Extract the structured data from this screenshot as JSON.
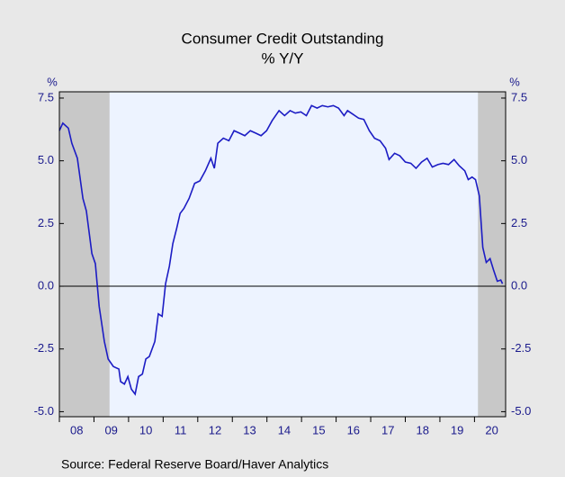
{
  "chart_data": {
    "type": "line",
    "title": "Consumer Credit Outstanding",
    "subtitle": "% Y/Y",
    "ylabel": "%",
    "y2label": "%",
    "source": "Source:  Federal Reserve Board/Haver Analytics",
    "xlim": [
      2008,
      2020.9
    ],
    "xticks": [
      {
        "value": 2008,
        "label": "08"
      },
      {
        "value": 2009,
        "label": "09"
      },
      {
        "value": 2010,
        "label": "10"
      },
      {
        "value": 2011,
        "label": "11"
      },
      {
        "value": 2012,
        "label": "12"
      },
      {
        "value": 2013,
        "label": "13"
      },
      {
        "value": 2014,
        "label": "14"
      },
      {
        "value": 2015,
        "label": "15"
      },
      {
        "value": 2016,
        "label": "16"
      },
      {
        "value": 2017,
        "label": "17"
      },
      {
        "value": 2018,
        "label": "18"
      },
      {
        "value": 2019,
        "label": "19"
      },
      {
        "value": 2020,
        "label": "20"
      }
    ],
    "ylim": [
      -5.2,
      7.75
    ],
    "yticks": [
      {
        "value": -5,
        "label": "-5.0"
      },
      -2.5,
      {
        "value": 0,
        "label": "0.0"
      },
      2.5,
      {
        "value": 5,
        "label": "5.0"
      },
      7.5
    ],
    "y2lim": [
      -5.2,
      7.75
    ],
    "y2ticks": [
      {
        "value": -5,
        "label": "-5.0"
      },
      -2.5,
      {
        "value": 0,
        "label": "0.0"
      },
      2.5,
      {
        "value": 5,
        "label": "5.0"
      },
      7.5
    ],
    "recessions": [
      [
        2008,
        2009.45
      ],
      [
        2020.1,
        2020.9
      ]
    ],
    "recession_color": "#c8c8c8",
    "plot_background": "#edf3ff",
    "x": [
      2008.0,
      2008.1,
      2008.26,
      2008.36,
      2008.52,
      2008.68,
      2008.78,
      2008.94,
      2009.04,
      2009.15,
      2009.3,
      2009.41,
      2009.56,
      2009.72,
      2009.77,
      2009.88,
      2009.98,
      2010.08,
      2010.19,
      2010.29,
      2010.4,
      2010.5,
      2010.6,
      2010.76,
      2010.86,
      2010.97,
      2011.07,
      2011.18,
      2011.28,
      2011.39,
      2011.49,
      2011.6,
      2011.75,
      2011.91,
      2012.06,
      2012.22,
      2012.38,
      2012.48,
      2012.58,
      2012.74,
      2012.9,
      2013.05,
      2013.21,
      2013.36,
      2013.52,
      2013.68,
      2013.83,
      2013.99,
      2014.15,
      2014.35,
      2014.51,
      2014.67,
      2014.82,
      2014.98,
      2015.14,
      2015.29,
      2015.45,
      2015.6,
      2015.76,
      2015.92,
      2016.07,
      2016.23,
      2016.33,
      2016.49,
      2016.65,
      2016.8,
      2016.96,
      2017.11,
      2017.27,
      2017.43,
      2017.53,
      2017.69,
      2017.84,
      2018.0,
      2018.16,
      2018.31,
      2018.47,
      2018.63,
      2018.78,
      2018.94,
      2019.09,
      2019.25,
      2019.41,
      2019.56,
      2019.72,
      2019.82,
      2019.93,
      2020.03,
      2020.14,
      2020.24,
      2020.34,
      2020.45,
      2020.55,
      2020.66,
      2020.76,
      2020.81
    ],
    "series": [
      {
        "name": "Consumer Credit Outstanding",
        "color": "#1c1cc4",
        "values": [
          6.2,
          6.5,
          6.3,
          5.7,
          5.1,
          3.5,
          3.0,
          1.3,
          0.9,
          -0.8,
          -2.2,
          -2.9,
          -3.2,
          -3.3,
          -3.8,
          -3.9,
          -3.6,
          -4.1,
          -4.3,
          -3.6,
          -3.5,
          -2.9,
          -2.8,
          -2.2,
          -1.1,
          -1.2,
          0.1,
          0.8,
          1.7,
          2.3,
          2.9,
          3.1,
          3.5,
          4.1,
          4.2,
          4.6,
          5.1,
          4.7,
          5.7,
          5.9,
          5.8,
          6.2,
          6.1,
          6.0,
          6.2,
          6.1,
          6.0,
          6.2,
          6.6,
          7.0,
          6.8,
          7.0,
          6.9,
          6.95,
          6.8,
          7.2,
          7.1,
          7.2,
          7.15,
          7.2,
          7.1,
          6.8,
          7.0,
          6.85,
          6.7,
          6.65,
          6.2,
          5.9,
          5.8,
          5.5,
          5.05,
          5.3,
          5.2,
          4.95,
          4.9,
          4.7,
          4.95,
          5.1,
          4.75,
          4.85,
          4.9,
          4.85,
          5.05,
          4.8,
          4.6,
          4.25,
          4.35,
          4.25,
          3.6,
          1.55,
          0.95,
          1.1,
          0.65,
          0.2,
          0.25,
          0.1
        ]
      }
    ]
  }
}
